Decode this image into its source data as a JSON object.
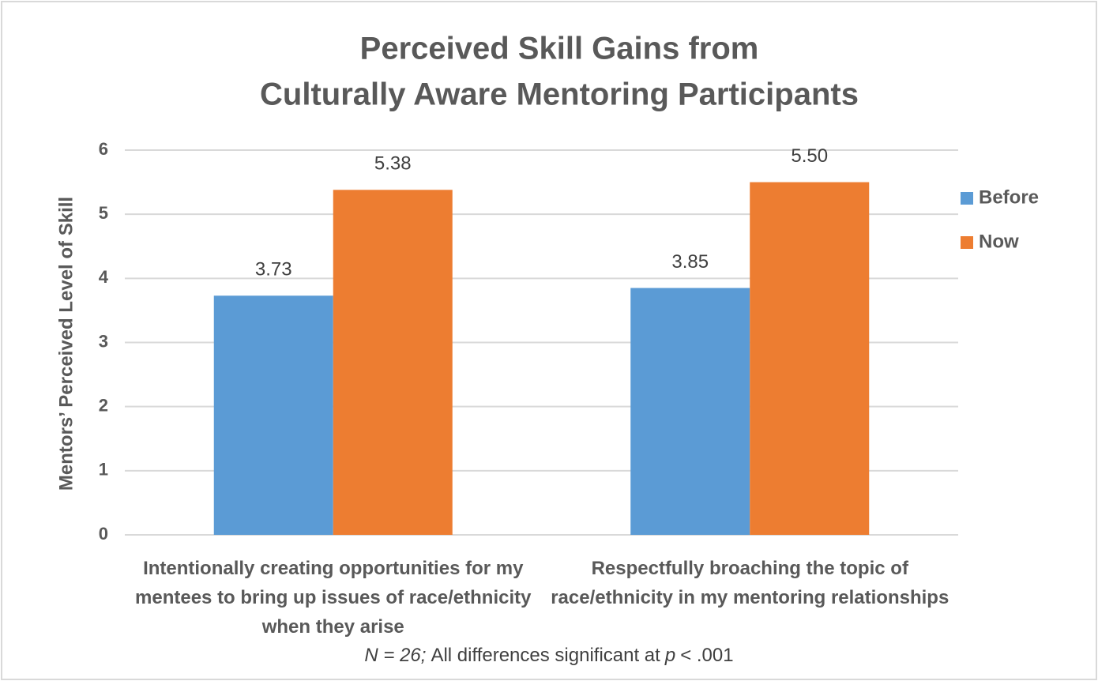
{
  "chart_data": {
    "type": "bar",
    "title": [
      "Perceived Skill Gains from",
      "Culturally Aware Mentoring Participants"
    ],
    "y_label": "Mentors’ Perceived Level of Skill",
    "categories": [
      "Intentionally creating opportunities for my mentees to bring up issues of race/ethnicity when they arise",
      "Respectfully broaching the topic of race/ethnicity in my mentoring relationships"
    ],
    "series": [
      {
        "name": "Before",
        "color": "#5b9bd5",
        "values": [
          3.73,
          3.85
        ],
        "value_labels": [
          "3.73",
          "3.85"
        ]
      },
      {
        "name": "Now",
        "color": "#ed7d31",
        "values": [
          5.38,
          5.5
        ],
        "value_labels": [
          "5.38",
          "5.50"
        ]
      }
    ],
    "ylim": [
      0,
      6
    ],
    "yticks": [
      0,
      1,
      2,
      3,
      4,
      5,
      6
    ],
    "grid": true,
    "legend": "right",
    "footnote": [
      {
        "text": "N = 26;",
        "italic": true
      },
      {
        "text": "All differences significant at",
        "italic": false
      },
      {
        "text": "p",
        "italic": true
      },
      {
        "text": "< .001",
        "italic": false
      }
    ]
  }
}
